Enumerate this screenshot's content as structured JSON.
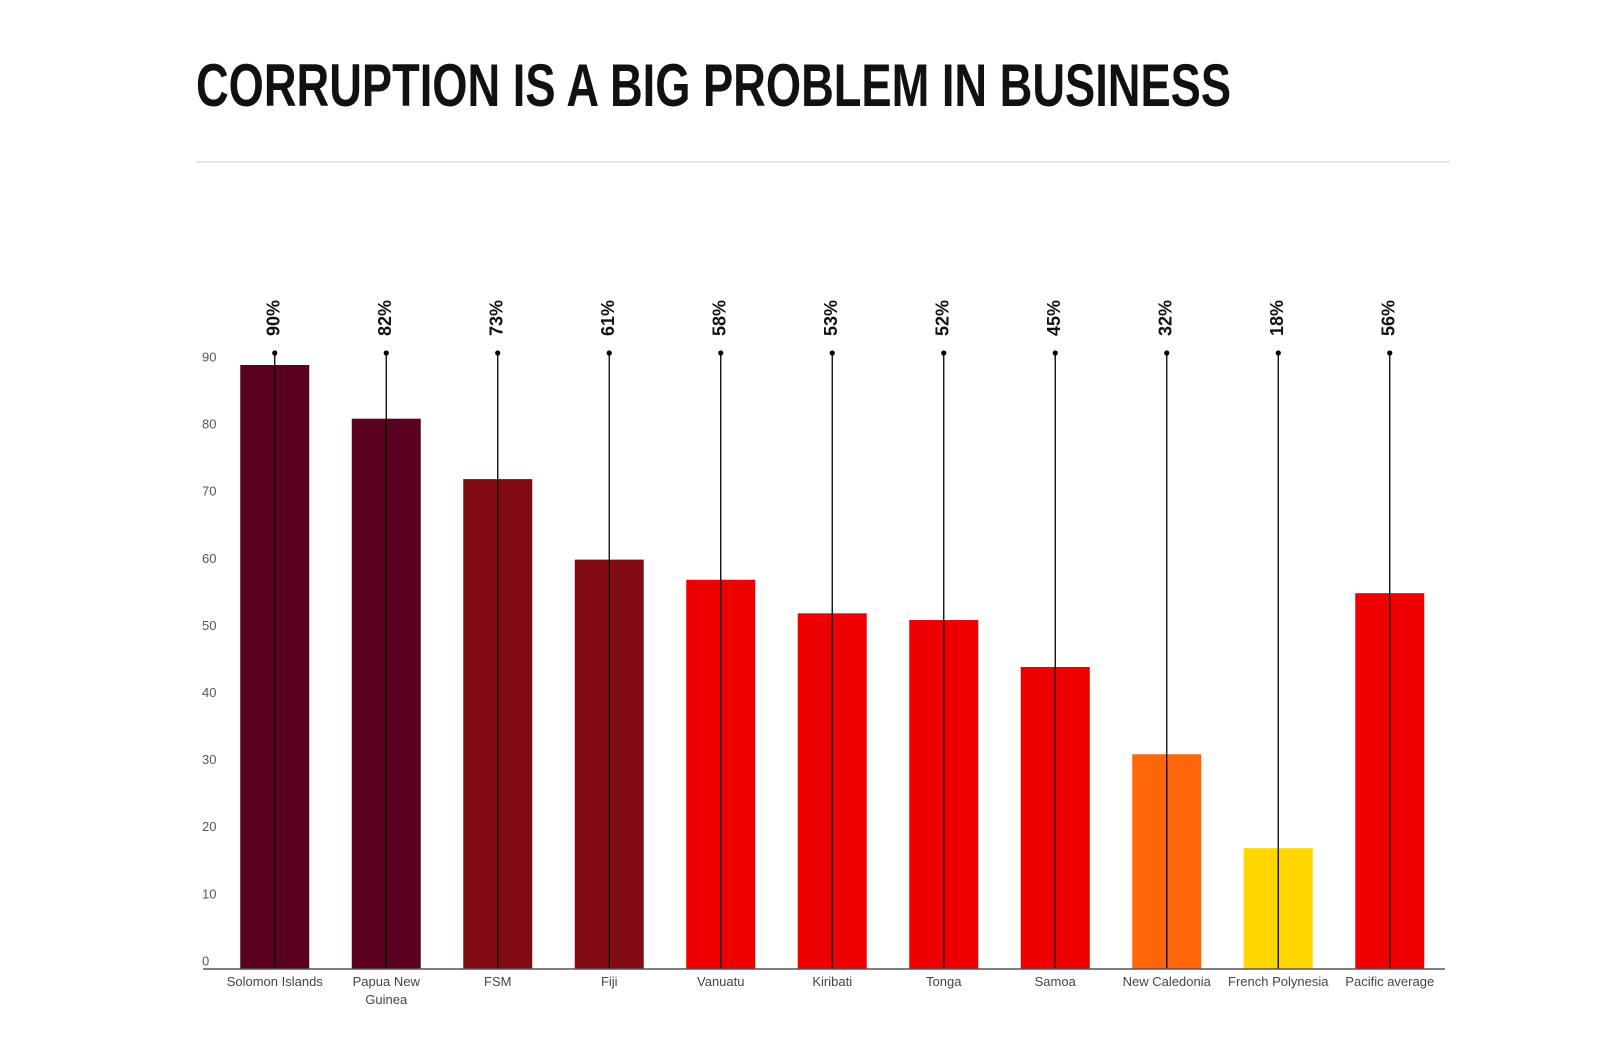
{
  "chart_data": {
    "type": "bar",
    "title": "CORRUPTION IS A BIG PROBLEM IN BUSINESS",
    "categories": [
      "Solomon Islands",
      "Papua New Guinea",
      "FSM",
      "Fiji",
      "Vanuatu",
      "Kiribati",
      "Tonga",
      "Samoa",
      "New Caledonia",
      "French Polynesia",
      "Pacific average"
    ],
    "values": [
      90,
      82,
      73,
      61,
      58,
      53,
      52,
      45,
      32,
      18,
      56
    ],
    "value_labels": [
      "90%",
      "82%",
      "73%",
      "61%",
      "58%",
      "53%",
      "52%",
      "45%",
      "32%",
      "18%",
      "56%"
    ],
    "colors": [
      "#5a0020",
      "#5a0020",
      "#7f0d13",
      "#7f0d13",
      "#ee0000",
      "#ee0000",
      "#ee0000",
      "#ee0000",
      "#ff6609",
      "#ffd700",
      "#ee0000"
    ],
    "ylim": [
      0,
      90
    ],
    "yticks": [
      0,
      10,
      20,
      30,
      40,
      50,
      60,
      70,
      80,
      90
    ],
    "grid": false
  }
}
